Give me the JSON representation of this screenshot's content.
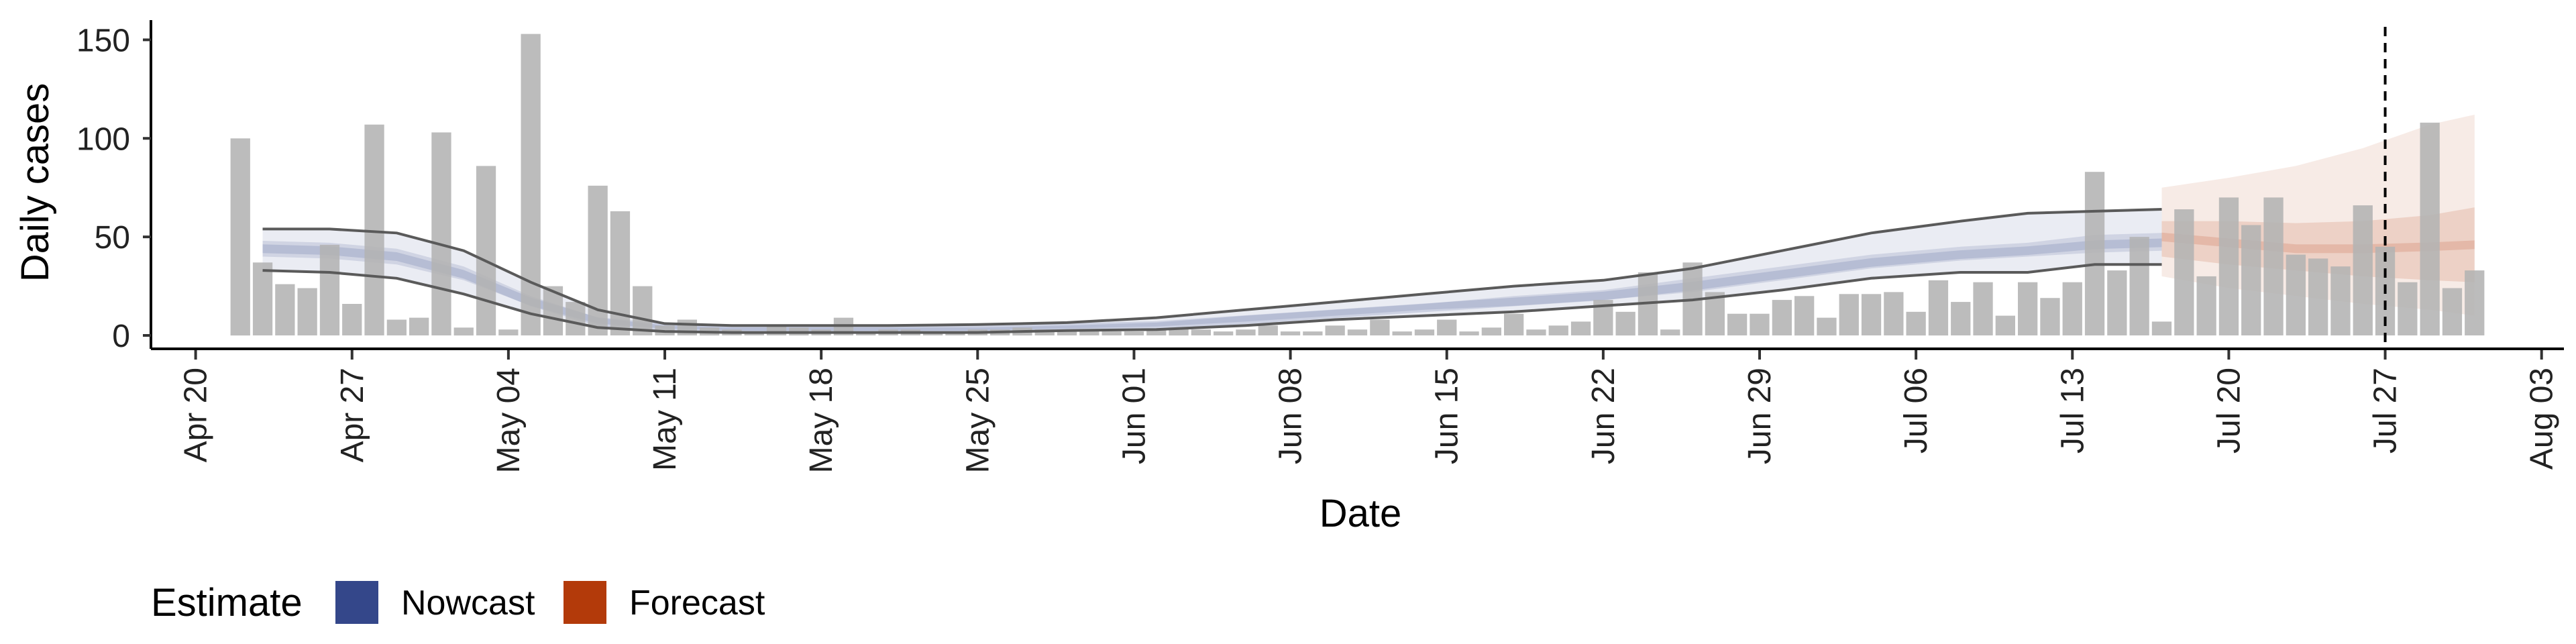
{
  "chart_data": {
    "type": "bar",
    "xlabel": "Date",
    "ylabel": "Daily cases",
    "xlim": [
      "2020-04-18",
      "2020-08-04"
    ],
    "ylim": [
      0,
      160
    ],
    "x_ticks": [
      "Apr 20",
      "Apr 27",
      "May 04",
      "May 11",
      "May 18",
      "May 25",
      "Jun 01",
      "Jun 08",
      "Jun 15",
      "Jun 22",
      "Jun 29",
      "Jul 06",
      "Jul 13",
      "Jul 20",
      "Jul 27",
      "Aug 03"
    ],
    "y_ticks": [
      0,
      50,
      100,
      150
    ],
    "grid": false,
    "vline_date": "2020-07-27",
    "bars": {
      "color": "#b3b3b3",
      "start_date": "2020-04-22",
      "values": [
        100,
        37,
        26,
        24,
        46,
        16,
        107,
        8,
        9,
        103,
        4,
        86,
        3,
        153,
        25,
        17,
        76,
        63,
        25,
        5,
        8,
        4,
        3,
        2,
        5,
        4,
        3,
        9,
        2,
        3,
        3,
        2,
        2,
        3,
        3,
        4,
        3,
        2,
        3,
        2,
        2,
        3,
        4,
        3,
        2,
        3,
        5,
        2,
        2,
        5,
        3,
        8,
        2,
        3,
        8,
        2,
        4,
        11,
        3,
        5,
        7,
        18,
        12,
        32,
        3,
        37,
        22,
        11,
        11,
        18,
        20,
        9,
        21,
        21,
        22,
        12,
        28,
        17,
        27,
        10,
        27,
        19,
        27,
        83,
        33,
        50,
        7,
        64,
        30,
        70,
        56,
        70,
        41,
        39,
        35,
        66,
        45,
        27,
        108,
        24,
        33
      ]
    },
    "series": [
      {
        "name": "Nowcast",
        "color": "#34478a",
        "dates": [
          "2020-04-23",
          "2020-04-26",
          "2020-04-29",
          "2020-05-02",
          "2020-05-05",
          "2020-05-08",
          "2020-05-11",
          "2020-05-14",
          "2020-05-17",
          "2020-05-21",
          "2020-05-25",
          "2020-05-29",
          "2020-06-02",
          "2020-06-06",
          "2020-06-10",
          "2020-06-14",
          "2020-06-18",
          "2020-06-22",
          "2020-06-26",
          "2020-06-30",
          "2020-07-04",
          "2020-07-08",
          "2020-07-11",
          "2020-07-14",
          "2020-07-17"
        ],
        "median": [
          44,
          43,
          40,
          31,
          17,
          7,
          4,
          3,
          3,
          3,
          3,
          4,
          5,
          8,
          11,
          14,
          17,
          20,
          25,
          31,
          37,
          41,
          43,
          46,
          47
        ],
        "inner_low": [
          40,
          39,
          36,
          28,
          15,
          6,
          3.5,
          2.5,
          2.5,
          2.5,
          2.5,
          3.5,
          4.5,
          7,
          10,
          13,
          15,
          18,
          22,
          28,
          34,
          38,
          40,
          42,
          43
        ],
        "inner_high": [
          48,
          47,
          44,
          35,
          20,
          9,
          5,
          4,
          4,
          4,
          4,
          5,
          6.5,
          10,
          13,
          16,
          20,
          23,
          29,
          35,
          41,
          45,
          47,
          51,
          52
        ],
        "outer_low": [
          33,
          32,
          29,
          21,
          11,
          4,
          2,
          1.5,
          1.5,
          1.5,
          1.5,
          2.5,
          3,
          5,
          8,
          10,
          12,
          15,
          18,
          23,
          29,
          32,
          32,
          36,
          36
        ],
        "outer_high": [
          54,
          54,
          52,
          43,
          27,
          13,
          6,
          5,
          5,
          5,
          5.5,
          6.5,
          9,
          13,
          17,
          21,
          25,
          28,
          34,
          43,
          52,
          58,
          62,
          63,
          64
        ]
      },
      {
        "name": "Forecast",
        "color": "#b33a0a",
        "dates": [
          "2020-07-17",
          "2020-07-20",
          "2020-07-23",
          "2020-07-26",
          "2020-07-29",
          "2020-07-31"
        ],
        "median": [
          50,
          47,
          44,
          44,
          45,
          46
        ],
        "inner_low": [
          40,
          36,
          33,
          30,
          28,
          27
        ],
        "inner_high": [
          58,
          58,
          57,
          58,
          61,
          65
        ],
        "outer_low": [
          30,
          24,
          20,
          16,
          13,
          10
        ],
        "outer_high": [
          75,
          80,
          86,
          95,
          107,
          112
        ]
      }
    ],
    "legend": {
      "title": "Estimate",
      "position": "bottom-left",
      "entries": [
        {
          "label": "Nowcast",
          "color": "#34478a"
        },
        {
          "label": "Forecast",
          "color": "#b33a0a"
        }
      ]
    }
  }
}
